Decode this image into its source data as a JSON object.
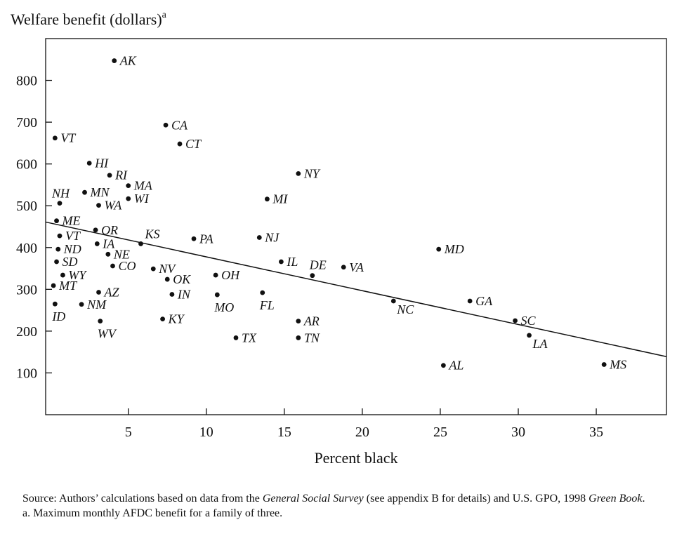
{
  "chart_data": {
    "type": "scatter",
    "title": "",
    "ylabel": "Welfare benefit (dollars)",
    "ylabel_marker": "a",
    "xlabel": "Percent black",
    "xlim": [
      -0.3,
      39.5
    ],
    "ylim": [
      0,
      900
    ],
    "xticks": [
      5,
      10,
      15,
      20,
      25,
      30,
      35
    ],
    "yticks": [
      100,
      200,
      300,
      400,
      500,
      600,
      700,
      800
    ],
    "grid": false,
    "fit_line": {
      "x": [
        -0.3,
        39.5
      ],
      "y": [
        461,
        139
      ]
    },
    "points": [
      {
        "label": "AK",
        "x": 4.1,
        "y": 847,
        "pos": "r"
      },
      {
        "label": "CA",
        "x": 7.4,
        "y": 693,
        "pos": "r"
      },
      {
        "label": "VT",
        "x": 0.3,
        "y": 662,
        "pos": "r"
      },
      {
        "label": "CT",
        "x": 8.3,
        "y": 648,
        "pos": "r"
      },
      {
        "label": "HI",
        "x": 2.5,
        "y": 602,
        "pos": "r"
      },
      {
        "label": "NY",
        "x": 15.9,
        "y": 577,
        "pos": "r"
      },
      {
        "label": "RI",
        "x": 3.8,
        "y": 573,
        "pos": "r"
      },
      {
        "label": "MA",
        "x": 5.0,
        "y": 548,
        "pos": "r"
      },
      {
        "label": "MN",
        "x": 2.2,
        "y": 532,
        "pos": "r"
      },
      {
        "label": "NH",
        "x": 0.6,
        "y": 506,
        "pos": "tl"
      },
      {
        "label": "MI",
        "x": 13.9,
        "y": 516,
        "pos": "r"
      },
      {
        "label": "WI",
        "x": 5.0,
        "y": 517,
        "pos": "r"
      },
      {
        "label": "WA",
        "x": 3.1,
        "y": 501,
        "pos": "r"
      },
      {
        "label": "ME",
        "x": 0.4,
        "y": 464,
        "pos": "r"
      },
      {
        "label": "OR",
        "x": 2.9,
        "y": 442,
        "pos": "r"
      },
      {
        "label": "NJ",
        "x": 13.4,
        "y": 424,
        "pos": "r"
      },
      {
        "label": "PA",
        "x": 9.2,
        "y": 421,
        "pos": "r"
      },
      {
        "label": "VT",
        "x": 0.6,
        "y": 428,
        "pos": "r"
      },
      {
        "label": "IA",
        "x": 3.0,
        "y": 409,
        "pos": "r"
      },
      {
        "label": "KS",
        "x": 5.8,
        "y": 409,
        "pos": "tr"
      },
      {
        "label": "ND",
        "x": 0.5,
        "y": 396,
        "pos": "r"
      },
      {
        "label": "MD",
        "x": 24.9,
        "y": 396,
        "pos": "r"
      },
      {
        "label": "NE",
        "x": 3.7,
        "y": 384,
        "pos": "r"
      },
      {
        "label": "IL",
        "x": 14.8,
        "y": 366,
        "pos": "r"
      },
      {
        "label": "SD",
        "x": 0.4,
        "y": 366,
        "pos": "r"
      },
      {
        "label": "CO",
        "x": 4.0,
        "y": 356,
        "pos": "r"
      },
      {
        "label": "VA",
        "x": 18.8,
        "y": 353,
        "pos": "r"
      },
      {
        "label": "NV",
        "x": 6.6,
        "y": 349,
        "pos": "r"
      },
      {
        "label": "WY",
        "x": 0.8,
        "y": 334,
        "pos": "r"
      },
      {
        "label": "DE",
        "x": 16.8,
        "y": 333,
        "pos": "t"
      },
      {
        "label": "OH",
        "x": 10.6,
        "y": 334,
        "pos": "r"
      },
      {
        "label": "OK",
        "x": 7.5,
        "y": 324,
        "pos": "r"
      },
      {
        "label": "MT",
        "x": 0.2,
        "y": 309,
        "pos": "r"
      },
      {
        "label": "AZ",
        "x": 3.1,
        "y": 293,
        "pos": "r"
      },
      {
        "label": "FL",
        "x": 13.6,
        "y": 292,
        "pos": "b"
      },
      {
        "label": "IN",
        "x": 7.8,
        "y": 288,
        "pos": "r"
      },
      {
        "label": "MO",
        "x": 10.7,
        "y": 287,
        "pos": "b"
      },
      {
        "label": "NC",
        "x": 22.0,
        "y": 272,
        "pos": "br"
      },
      {
        "label": "GA",
        "x": 26.9,
        "y": 272,
        "pos": "r"
      },
      {
        "label": "ID",
        "x": 0.3,
        "y": 265,
        "pos": "b"
      },
      {
        "label": "NM",
        "x": 2.0,
        "y": 264,
        "pos": "r"
      },
      {
        "label": "KY",
        "x": 7.2,
        "y": 229,
        "pos": "r"
      },
      {
        "label": "SC",
        "x": 29.8,
        "y": 225,
        "pos": "r"
      },
      {
        "label": "WV",
        "x": 3.2,
        "y": 224,
        "pos": "b"
      },
      {
        "label": "AR",
        "x": 15.9,
        "y": 224,
        "pos": "r"
      },
      {
        "label": "LA",
        "x": 30.7,
        "y": 190,
        "pos": "br"
      },
      {
        "label": "TX",
        "x": 11.9,
        "y": 184,
        "pos": "r"
      },
      {
        "label": "TN",
        "x": 15.9,
        "y": 184,
        "pos": "r"
      },
      {
        "label": "AL",
        "x": 25.2,
        "y": 118,
        "pos": "r"
      },
      {
        "label": "MS",
        "x": 35.5,
        "y": 120,
        "pos": "r"
      }
    ]
  },
  "footer": {
    "source_prefix": "Source:  Authors’ calculations based on data from the ",
    "source_italic1": "General Social Survey",
    "source_middle": " (see appendix B for details) and U.S. GPO, 1998 ",
    "source_italic2": "Green Book",
    "source_suffix": ".",
    "note": "a.  Maximum monthly AFDC benefit for a family of three."
  }
}
